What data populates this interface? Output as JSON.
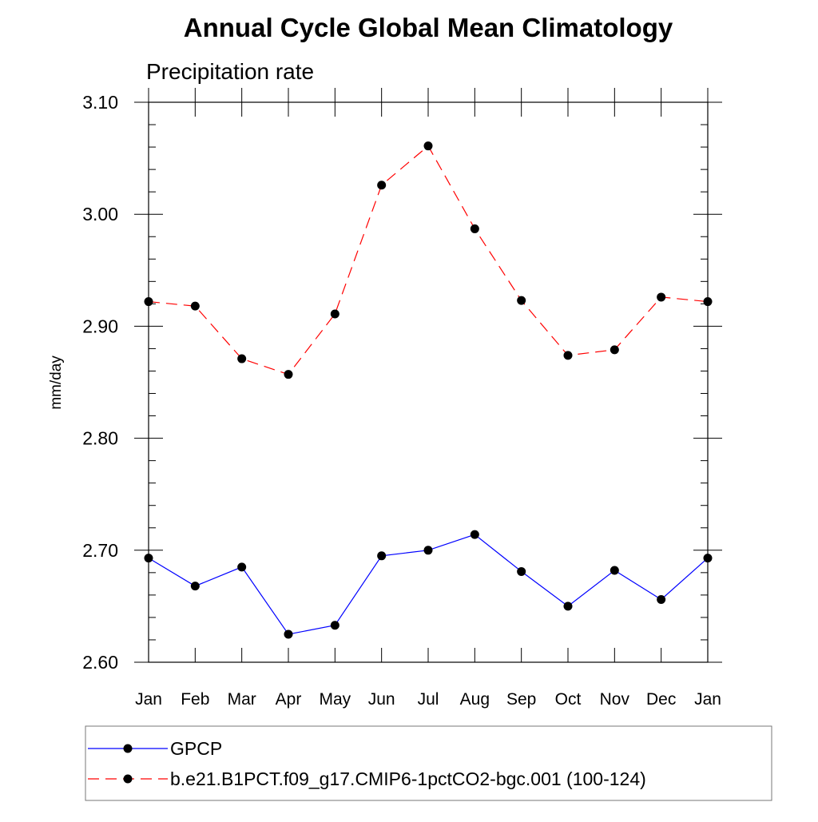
{
  "chart_data": {
    "type": "line",
    "title": "Annual Cycle Global Mean Climatology",
    "subtitle": "Precipitation rate",
    "ylabel": "mm/day",
    "xlabel": "",
    "categories": [
      "Jan",
      "Feb",
      "Mar",
      "Apr",
      "May",
      "Jun",
      "Jul",
      "Aug",
      "Sep",
      "Oct",
      "Nov",
      "Dec",
      "Jan"
    ],
    "ylim": [
      2.6,
      3.1
    ],
    "yticks": [
      2.6,
      2.7,
      2.8,
      2.9,
      3.0,
      3.1
    ],
    "ytick_labels": [
      "2.60",
      "2.70",
      "2.80",
      "2.90",
      "3.00",
      "3.10"
    ],
    "minor_tick_step": 0.02,
    "grid": false,
    "legend_position": "bottom",
    "series": [
      {
        "name": "GPCP",
        "color": "#0000ff",
        "line_style": "solid",
        "marker": "circle",
        "marker_color": "#000000",
        "values": [
          2.693,
          2.668,
          2.685,
          2.625,
          2.633,
          2.695,
          2.7,
          2.714,
          2.681,
          2.65,
          2.682,
          2.656,
          2.693
        ]
      },
      {
        "name": "b.e21.B1PCT.f09_g17.CMIP6-1pctCO2-bgc.001 (100-124)",
        "color": "#ff0000",
        "line_style": "dashed",
        "marker": "circle",
        "marker_color": "#000000",
        "values": [
          2.922,
          2.918,
          2.871,
          2.857,
          2.911,
          3.026,
          3.061,
          2.987,
          2.923,
          2.874,
          2.879,
          2.926,
          2.922
        ]
      }
    ]
  }
}
